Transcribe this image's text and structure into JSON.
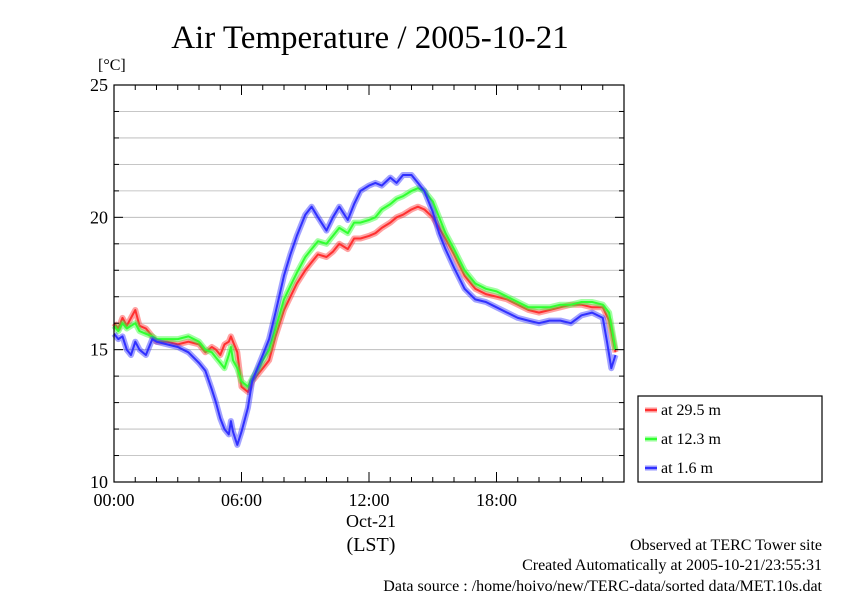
{
  "chart_data": {
    "type": "line",
    "title": "Air Temperature / 2005-10-21",
    "ylabel": "[°C]",
    "xlabel": "(LST)",
    "date_label": "Oct-21",
    "ylim": [
      10,
      25
    ],
    "xlim": [
      0,
      24
    ],
    "y_ticks": [
      10,
      15,
      20,
      25
    ],
    "y_tick_labels": [
      "10",
      "15",
      "20",
      "25"
    ],
    "x_ticks": [
      0,
      6,
      12,
      18
    ],
    "x_tick_labels": [
      "00:00",
      "06:00",
      "12:00",
      "18:00"
    ],
    "grid": "horizontal, every 1 °C",
    "legend_position": "right",
    "series": [
      {
        "name": "at 29.5 m",
        "color": "#ff3030",
        "x": [
          0.0,
          0.2,
          0.4,
          0.6,
          0.8,
          1.0,
          1.2,
          1.5,
          1.8,
          2.0,
          2.5,
          3.0,
          3.5,
          4.0,
          4.3,
          4.6,
          4.8,
          5.0,
          5.2,
          5.4,
          5.5,
          5.6,
          5.8,
          6.0,
          6.3,
          6.5,
          6.8,
          7.0,
          7.3,
          7.6,
          8.0,
          8.3,
          8.6,
          9.0,
          9.3,
          9.6,
          10.0,
          10.3,
          10.6,
          11.0,
          11.3,
          11.6,
          12.0,
          12.3,
          12.6,
          13.0,
          13.3,
          13.6,
          14.0,
          14.3,
          14.6,
          15.0,
          15.3,
          15.6,
          16.0,
          16.5,
          17.0,
          17.5,
          18.0,
          18.5,
          19.0,
          19.5,
          20.0,
          20.5,
          21.0,
          21.5,
          22.0,
          22.5,
          23.0,
          23.3,
          23.6
        ],
        "values": [
          16.0,
          15.8,
          16.2,
          15.9,
          16.2,
          16.5,
          15.9,
          15.8,
          15.5,
          15.3,
          15.3,
          15.2,
          15.3,
          15.2,
          14.9,
          15.1,
          15.0,
          14.8,
          15.2,
          15.3,
          15.5,
          15.3,
          14.9,
          13.6,
          13.4,
          13.8,
          14.1,
          14.3,
          14.6,
          15.5,
          16.5,
          17.0,
          17.5,
          18.0,
          18.3,
          18.6,
          18.5,
          18.7,
          19.0,
          18.8,
          19.2,
          19.2,
          19.3,
          19.4,
          19.6,
          19.8,
          20.0,
          20.1,
          20.3,
          20.4,
          20.3,
          20.0,
          19.6,
          19.2,
          18.6,
          17.8,
          17.3,
          17.1,
          17.0,
          16.9,
          16.7,
          16.5,
          16.4,
          16.5,
          16.6,
          16.7,
          16.7,
          16.6,
          16.6,
          16.1,
          14.9
        ]
      },
      {
        "name": "at 12.3 m",
        "color": "#30ff30",
        "x": [
          0.0,
          0.2,
          0.4,
          0.6,
          0.8,
          1.0,
          1.2,
          1.5,
          1.8,
          2.0,
          2.5,
          3.0,
          3.5,
          4.0,
          4.3,
          4.6,
          4.8,
          5.0,
          5.2,
          5.4,
          5.5,
          5.6,
          5.8,
          6.0,
          6.3,
          6.5,
          6.8,
          7.0,
          7.3,
          7.6,
          8.0,
          8.3,
          8.6,
          9.0,
          9.3,
          9.6,
          10.0,
          10.3,
          10.6,
          11.0,
          11.3,
          11.6,
          12.0,
          12.3,
          12.6,
          13.0,
          13.3,
          13.6,
          14.0,
          14.3,
          14.6,
          15.0,
          15.3,
          15.6,
          16.0,
          16.5,
          17.0,
          17.5,
          18.0,
          18.5,
          19.0,
          19.5,
          20.0,
          20.5,
          21.0,
          21.5,
          22.0,
          22.5,
          23.0,
          23.3,
          23.6
        ],
        "values": [
          15.9,
          15.7,
          16.0,
          15.8,
          15.9,
          16.0,
          15.7,
          15.6,
          15.5,
          15.4,
          15.4,
          15.4,
          15.5,
          15.3,
          15.0,
          14.9,
          14.7,
          14.5,
          14.3,
          14.8,
          15.1,
          14.6,
          14.3,
          13.8,
          13.6,
          13.9,
          14.3,
          14.6,
          15.0,
          15.8,
          16.9,
          17.4,
          17.9,
          18.5,
          18.8,
          19.1,
          19.0,
          19.3,
          19.6,
          19.4,
          19.8,
          19.8,
          19.9,
          20.0,
          20.3,
          20.5,
          20.7,
          20.8,
          21.0,
          21.1,
          21.0,
          20.6,
          20.0,
          19.4,
          18.8,
          18.0,
          17.5,
          17.3,
          17.2,
          17.0,
          16.8,
          16.6,
          16.6,
          16.6,
          16.7,
          16.7,
          16.8,
          16.8,
          16.7,
          16.4,
          15.0
        ]
      },
      {
        "name": "at 1.6 m",
        "color": "#3030ff",
        "x": [
          0.0,
          0.2,
          0.4,
          0.6,
          0.8,
          1.0,
          1.2,
          1.5,
          1.8,
          2.0,
          2.5,
          3.0,
          3.5,
          4.0,
          4.3,
          4.6,
          4.8,
          5.0,
          5.2,
          5.4,
          5.5,
          5.6,
          5.8,
          6.0,
          6.3,
          6.5,
          6.8,
          7.0,
          7.3,
          7.6,
          8.0,
          8.3,
          8.6,
          9.0,
          9.3,
          9.6,
          10.0,
          10.3,
          10.6,
          11.0,
          11.3,
          11.6,
          12.0,
          12.3,
          12.6,
          13.0,
          13.3,
          13.6,
          14.0,
          14.3,
          14.6,
          15.0,
          15.3,
          15.6,
          16.0,
          16.5,
          17.0,
          17.5,
          18.0,
          18.5,
          19.0,
          19.5,
          20.0,
          20.5,
          21.0,
          21.5,
          22.0,
          22.5,
          23.0,
          23.2,
          23.4,
          23.6
        ],
        "values": [
          15.6,
          15.4,
          15.5,
          15.0,
          14.8,
          15.3,
          15.0,
          14.8,
          15.4,
          15.3,
          15.2,
          15.1,
          14.9,
          14.5,
          14.2,
          13.5,
          13.0,
          12.4,
          12.0,
          11.8,
          12.3,
          11.9,
          11.4,
          11.9,
          12.8,
          13.8,
          14.4,
          14.8,
          15.4,
          16.4,
          17.8,
          18.6,
          19.3,
          20.1,
          20.4,
          20.0,
          19.5,
          20.0,
          20.4,
          19.9,
          20.5,
          21.0,
          21.2,
          21.3,
          21.2,
          21.5,
          21.3,
          21.6,
          21.6,
          21.3,
          21.0,
          20.2,
          19.4,
          18.8,
          18.1,
          17.3,
          16.9,
          16.8,
          16.6,
          16.4,
          16.2,
          16.1,
          16.0,
          16.1,
          16.1,
          16.0,
          16.3,
          16.4,
          16.2,
          15.3,
          14.3,
          14.8
        ]
      }
    ]
  },
  "footer": {
    "line1": "Observed at TERC Tower site",
    "line2": "Created Automatically at 2005-10-21/23:55:31",
    "line3": "Data source : /home/hoivo/new/TERC-data/sorted  data/MET.10s.dat"
  }
}
